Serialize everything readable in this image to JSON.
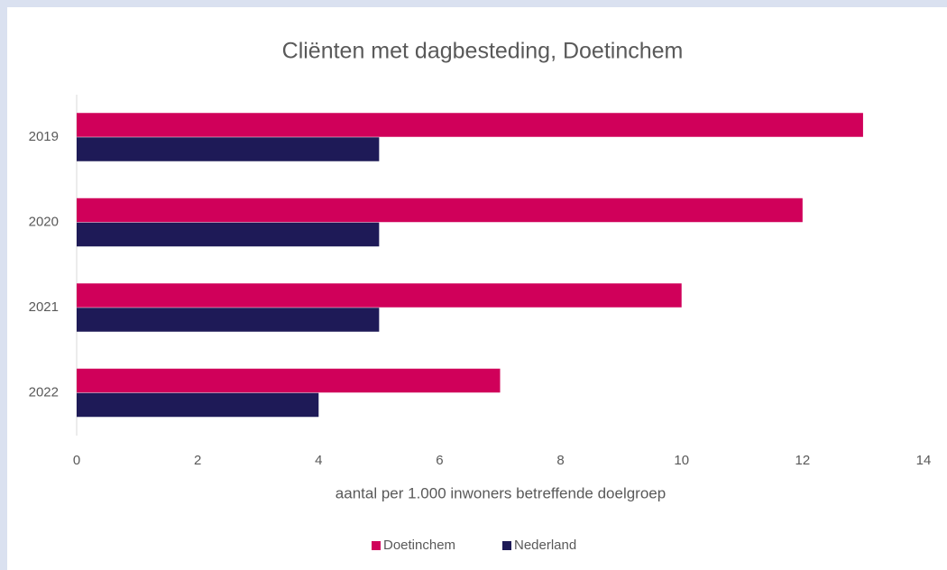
{
  "chart_data": {
    "type": "hbar",
    "title": "Cliënten met dagbesteding, Doetinchem",
    "x_label": "aantal per 1.000 inwoners betreffende doelgroep",
    "categories": [
      "2019",
      "2020",
      "2021",
      "2022"
    ],
    "series": [
      {
        "name": "Doetinchem",
        "color": "#d0005a",
        "values": [
          13,
          12,
          10,
          7
        ]
      },
      {
        "name": "Nederland",
        "color": "#1e1a57",
        "values": [
          5,
          5,
          5,
          4
        ]
      }
    ],
    "xlim": [
      0,
      14
    ],
    "xticks": [
      0,
      2,
      4,
      6,
      8,
      10,
      12,
      14
    ],
    "grid": false,
    "legend": "bottom"
  }
}
